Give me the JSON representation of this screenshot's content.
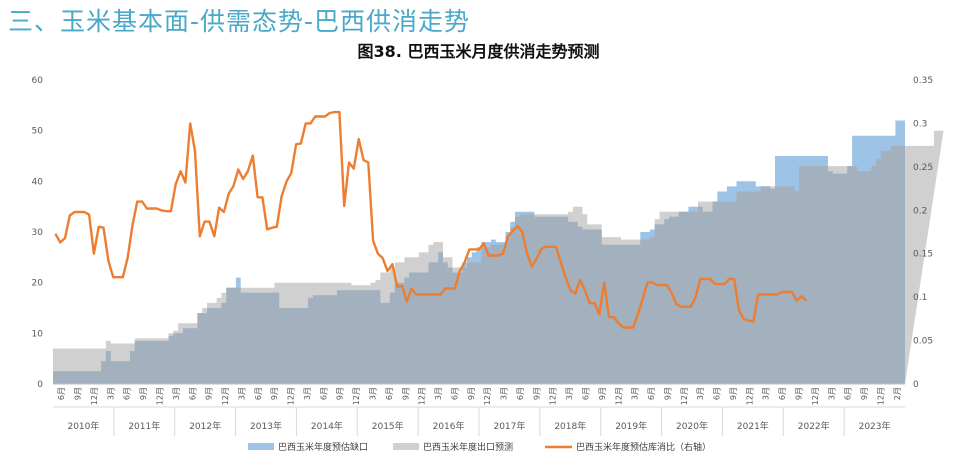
{
  "header": {
    "section_title": "三、玉米基本面-供需态势-巴西供消走势"
  },
  "colors": {
    "gap": "#9dc3e6",
    "export": "#d0d0d0",
    "ratio": "#ed7d31",
    "overlap": "#a3b1bf"
  },
  "chart_data": {
    "type": "area+line",
    "title": "图38. 巴西玉米月度供消走势预测",
    "left_axis": {
      "min": 0,
      "max": 60,
      "ticks": [
        0,
        10,
        20,
        30,
        40,
        50,
        60
      ]
    },
    "right_axis": {
      "min": 0,
      "max": 0.35,
      "ticks": [
        0,
        0.05,
        0.1,
        0.15,
        0.2,
        0.25,
        0.3,
        0.35
      ]
    },
    "grid": false,
    "legend_position": "bottom",
    "x_month_labels": [
      "6月",
      "9月",
      "12月",
      "3月",
      "6月",
      "9月",
      "12月",
      "3月",
      "6月",
      "9月",
      "12月",
      "3月",
      "6月",
      "9月",
      "12月",
      "3月",
      "6月",
      "9月",
      "12月",
      "3月",
      "6月",
      "9月",
      "12月",
      "3月",
      "6月",
      "9月",
      "12月",
      "3月",
      "6月",
      "9月",
      "12月",
      "3月",
      "6月",
      "9月",
      "12月",
      "3月",
      "6月",
      "9月",
      "12月",
      "3月",
      "6月",
      "9月",
      "12月",
      "3月",
      "6月",
      "9月",
      "12月",
      "3月",
      "6月",
      "9月",
      "12月",
      "2月"
    ],
    "x_year_labels": [
      "2010年",
      "2011年",
      "2012年",
      "2013年",
      "2014年",
      "2015年",
      "2016年",
      "2017年",
      "2018年",
      "2019年",
      "2020年",
      "2021年",
      "2022年",
      "2023年"
    ],
    "series": [
      {
        "name": "巴西玉米年度预估缺口",
        "axis": "left",
        "type": "area",
        "values": [
          2.5,
          2.5,
          2.5,
          2.5,
          2.5,
          2.5,
          2.5,
          2.5,
          2.5,
          2.5,
          4.5,
          6.5,
          4.5,
          4.5,
          4.5,
          4.5,
          6.5,
          8.5,
          8.5,
          8.5,
          8.5,
          8.5,
          8.5,
          8.5,
          9.5,
          10,
          10,
          11,
          11,
          11,
          14,
          14,
          15,
          15,
          15,
          16,
          19,
          19,
          21,
          18,
          18,
          18,
          18,
          18,
          18,
          18,
          18,
          15,
          15,
          15,
          15,
          15,
          15,
          17,
          17.5,
          17.5,
          17.5,
          17.5,
          17.5,
          18.5,
          18.5,
          18.5,
          18.5,
          18.5,
          18.5,
          18.5,
          18.5,
          18.5,
          16,
          16,
          18,
          20,
          20,
          21,
          22,
          22,
          22,
          22,
          24,
          24,
          26,
          24,
          23,
          22,
          22,
          24,
          25,
          26,
          27,
          28,
          28,
          28.5,
          28,
          28,
          30,
          32,
          34,
          34,
          34,
          34,
          33,
          33,
          33,
          33,
          33,
          33,
          33,
          32,
          32,
          31,
          30.5,
          30.5,
          30.5,
          30.5,
          27.5,
          27.5,
          27.5,
          27.5,
          27.5,
          27.5,
          27.5,
          27.5,
          30,
          30,
          30.5,
          31.5,
          31.5,
          32.5,
          33,
          33,
          34,
          34,
          35,
          35,
          35,
          34,
          34,
          36,
          38,
          38,
          39,
          39,
          40,
          40,
          40,
          40,
          39,
          39,
          39,
          38.5,
          45,
          45,
          45,
          45,
          45,
          45,
          45,
          45,
          45,
          45,
          45,
          42,
          41.5,
          41.5,
          41.5,
          43,
          49,
          49,
          49,
          49,
          49,
          49,
          49,
          49,
          49,
          52,
          52
        ]
      },
      {
        "name": "巴西玉米年度出口预测",
        "axis": "left",
        "type": "area",
        "values": [
          7,
          7,
          7,
          7,
          7,
          7,
          7,
          7,
          7,
          7,
          7,
          8.5,
          8,
          8,
          8,
          8,
          8,
          9,
          9,
          9,
          9,
          9,
          9,
          9,
          10,
          10.5,
          12,
          12,
          12,
          12,
          14,
          15,
          16,
          16,
          17,
          18,
          19,
          19,
          19,
          19,
          19,
          19,
          19,
          19,
          19,
          19,
          20,
          20,
          20,
          20,
          20,
          20,
          20,
          20,
          20,
          20,
          20,
          20,
          20,
          20,
          20,
          20,
          19.5,
          19.5,
          19.5,
          19.5,
          20,
          20.5,
          22,
          22,
          23,
          24,
          24,
          25,
          25,
          25,
          26,
          26,
          27.5,
          28,
          28,
          25,
          25,
          23,
          23,
          23,
          24,
          24,
          24,
          27,
          27,
          27.5,
          27.5,
          27.5,
          29,
          31,
          33,
          33.5,
          33.5,
          33.5,
          33.5,
          33.5,
          33.5,
          33.5,
          33.5,
          33.5,
          33.5,
          34,
          35,
          35,
          33.5,
          31.5,
          31.5,
          31.5,
          29,
          29,
          29,
          29,
          28.5,
          28.5,
          28.5,
          28.5,
          28.5,
          28.5,
          29,
          32.5,
          34,
          34,
          34,
          34,
          34,
          34,
          34,
          34,
          36,
          36,
          36,
          36,
          36,
          36,
          36,
          36,
          38,
          38,
          38,
          38,
          38,
          39,
          39,
          39,
          39,
          39,
          39,
          39,
          38,
          43,
          43,
          43,
          43,
          43,
          43,
          43,
          43,
          43,
          43,
          43,
          43,
          42,
          42,
          42,
          43,
          44.5,
          46,
          46,
          47,
          47,
          47,
          47,
          47,
          47,
          47,
          47,
          47,
          50,
          50
        ]
      },
      {
        "name": "巴西玉米年度预估库消比（右轴）",
        "axis": "right",
        "type": "line",
        "values": [
          0.173,
          0.163,
          0.168,
          0.194,
          0.198,
          0.198,
          0.198,
          0.195,
          0.15,
          0.181,
          0.18,
          0.142,
          0.123,
          0.123,
          0.123,
          0.145,
          0.182,
          0.21,
          0.21,
          0.202,
          0.202,
          0.202,
          0.2,
          0.199,
          0.199,
          0.23,
          0.245,
          0.232,
          0.3,
          0.268,
          0.17,
          0.187,
          0.187,
          0.17,
          0.203,
          0.198,
          0.219,
          0.228,
          0.247,
          0.236,
          0.245,
          0.263,
          0.215,
          0.215,
          0.178,
          0.18,
          0.181,
          0.216,
          0.233,
          0.243,
          0.276,
          0.277,
          0.3,
          0.3,
          0.308,
          0.308,
          0.308,
          0.312,
          0.313,
          0.313,
          0.205,
          0.255,
          0.248,
          0.282,
          0.258,
          0.255,
          0.165,
          0.15,
          0.145,
          0.13,
          0.138,
          0.112,
          0.113,
          0.095,
          0.11,
          0.103,
          0.103,
          0.103,
          0.103,
          0.103,
          0.103,
          0.11,
          0.11,
          0.11,
          0.13,
          0.14,
          0.155,
          0.155,
          0.155,
          0.162,
          0.148,
          0.148,
          0.148,
          0.15,
          0.17,
          0.176,
          0.182,
          0.175,
          0.15,
          0.135,
          0.145,
          0.156,
          0.158,
          0.158,
          0.158,
          0.14,
          0.123,
          0.108,
          0.104,
          0.12,
          0.108,
          0.093,
          0.093,
          0.08,
          0.117,
          0.077,
          0.077,
          0.07,
          0.065,
          0.065,
          0.065,
          0.08,
          0.098,
          0.117,
          0.117,
          0.114,
          0.114,
          0.114,
          0.105,
          0.092,
          0.089,
          0.089,
          0.089,
          0.1,
          0.121,
          0.121,
          0.121,
          0.115,
          0.115,
          0.115,
          0.121,
          0.121,
          0.085,
          0.075,
          0.073,
          0.072,
          0.103,
          0.103,
          0.103,
          0.103,
          0.103,
          0.106,
          0.106,
          0.106,
          0.096,
          0.101,
          0.096
        ]
      }
    ]
  }
}
